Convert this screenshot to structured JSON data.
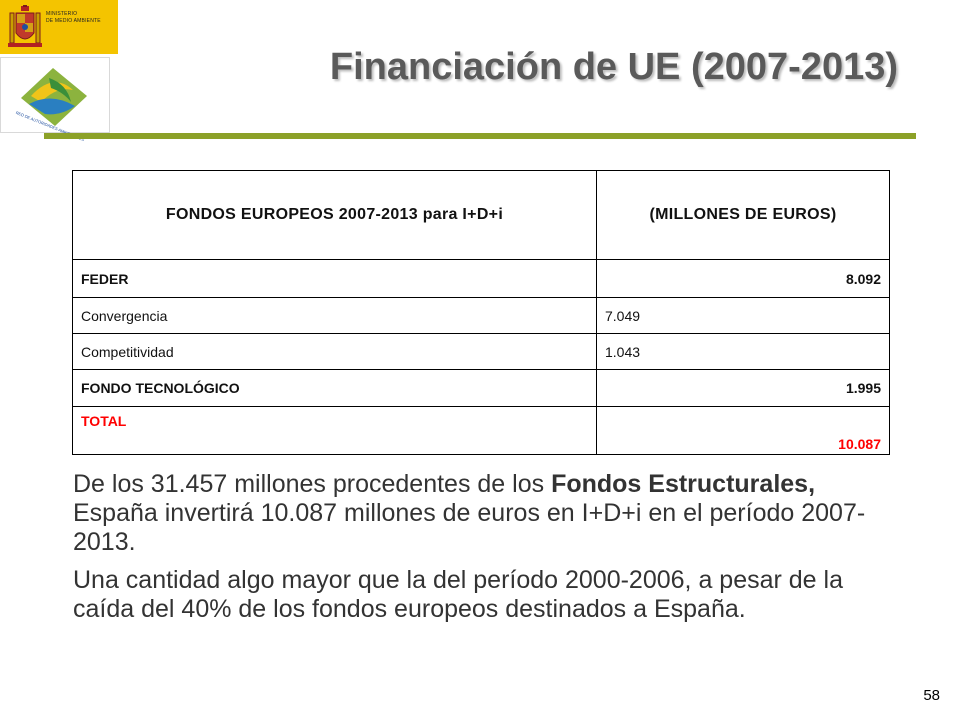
{
  "logos": {
    "ministry": {
      "line1": "MINISTERIO",
      "line2": "DE MEDIO AMBIENTE",
      "color": "#f4c400"
    },
    "network": {
      "text": "RED DE AUTORIDADES AMBIENTALES"
    }
  },
  "title": "Financiación de UE (2007-2013)",
  "accent_color": "#8ca128",
  "table": {
    "headers": [
      "FONDOS EUROPEOS 2007-2013 para I+D+i",
      "(MILLONES DE EUROS)"
    ],
    "rows": [
      {
        "label": "FEDER",
        "value": "8.092"
      },
      {
        "label": "Convergencia",
        "value": "7.049"
      },
      {
        "label": "Competitividad",
        "value": "1.043"
      },
      {
        "label": "FONDO TECNOLÓGICO",
        "value": "1.995"
      },
      {
        "label": "TOTAL",
        "value": "10.087"
      }
    ]
  },
  "paragraphs": {
    "p1_start": "De los 31.457 millones procedentes de los ",
    "p1_bold": "Fondos Estructurales,",
    "p1_end": " España invertirá 10.087 millones de euros en I+D+i en el período 2007-2013.",
    "p2": "Una cantidad algo mayor que la del período 2000-2006, a pesar de la caída del 40% de los fondos europeos destinados a España."
  },
  "page_number": "58"
}
